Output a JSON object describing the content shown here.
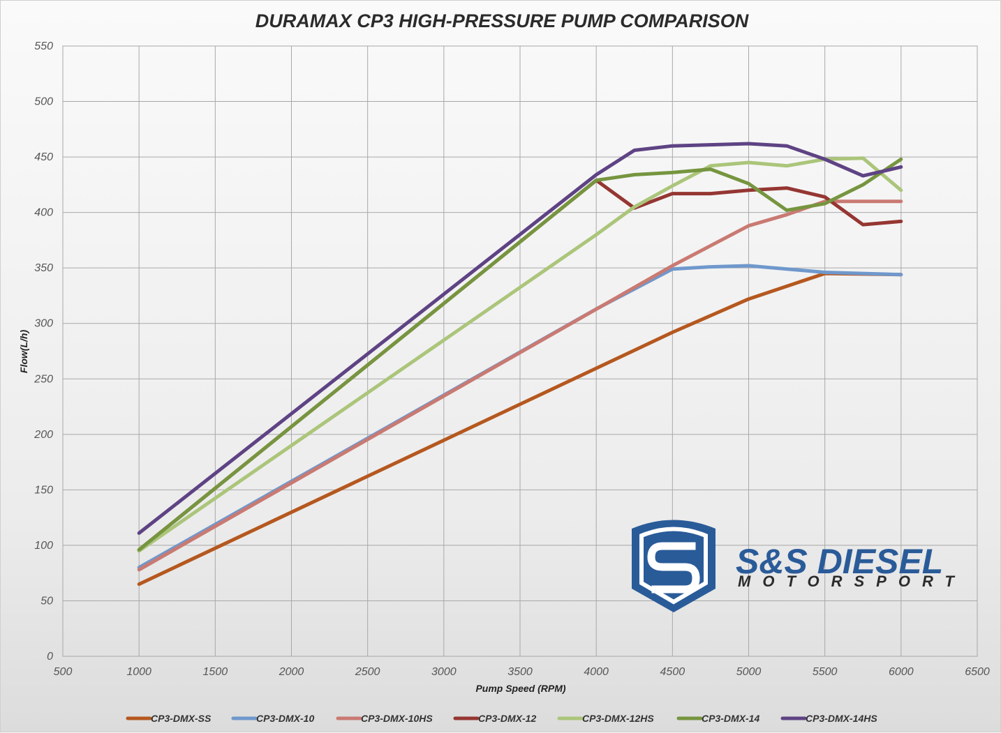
{
  "chart_data": {
    "type": "line",
    "title": "DURAMAX CP3 HIGH-PRESSURE PUMP COMPARISON",
    "xlabel": "Pump Speed (RPM)",
    "ylabel": "Flow(L/h)",
    "xlim": [
      500,
      6500
    ],
    "ylim": [
      0,
      550
    ],
    "xticks": [
      500,
      1000,
      1500,
      2000,
      2500,
      3000,
      3500,
      4000,
      4500,
      5000,
      5500,
      6000,
      6500
    ],
    "yticks": [
      0,
      50,
      100,
      150,
      200,
      250,
      300,
      350,
      400,
      450,
      500,
      550
    ],
    "grid": true,
    "legend_position": "bottom",
    "series": [
      {
        "name": "CP3-DMX-SS",
        "color": "#b5581f",
        "x": [
          1000,
          4500,
          5000,
          5500,
          6000
        ],
        "y": [
          65,
          292,
          322,
          345,
          344
        ]
      },
      {
        "name": "CP3-DMX-10",
        "color": "#6f98cc",
        "x": [
          1000,
          4000,
          4500,
          4750,
          5000,
          5250,
          5500,
          5750,
          6000
        ],
        "y": [
          80,
          313,
          349,
          351,
          352,
          349,
          346,
          345,
          344
        ]
      },
      {
        "name": "CP3-DMX-10HS",
        "color": "#c97a72",
        "x": [
          1000,
          4500,
          5000,
          5250,
          5500,
          5750,
          6000
        ],
        "y": [
          78,
          352,
          388,
          398,
          410,
          410,
          410
        ]
      },
      {
        "name": "CP3-DMX-12",
        "color": "#953632",
        "x": [
          1000,
          4000,
          4250,
          4500,
          4750,
          5000,
          5250,
          5500,
          5750,
          6000
        ],
        "y": [
          96,
          429,
          404,
          417,
          417,
          420,
          422,
          414,
          389,
          392
        ]
      },
      {
        "name": "CP3-DMX-12HS",
        "color": "#abc57a",
        "x": [
          1000,
          4000,
          4250,
          4500,
          4750,
          5000,
          5250,
          5500,
          5750,
          6000
        ],
        "y": [
          95,
          380,
          405,
          424,
          442,
          445,
          442,
          448,
          449,
          420
        ]
      },
      {
        "name": "CP3-DMX-14",
        "color": "#76953f",
        "x": [
          1000,
          4000,
          4250,
          4500,
          4750,
          5000,
          5250,
          5500,
          5750,
          6000
        ],
        "y": [
          96,
          429,
          434,
          436,
          439,
          426,
          402,
          408,
          425,
          448
        ]
      },
      {
        "name": "CP3-DMX-14HS",
        "color": "#5e4384",
        "x": [
          1000,
          4000,
          4250,
          4500,
          4750,
          5000,
          5250,
          5500,
          5750,
          6000
        ],
        "y": [
          111,
          434,
          456,
          460,
          461,
          462,
          460,
          448,
          433,
          441
        ]
      }
    ]
  },
  "logo": {
    "main_text": "S&S DIESEL",
    "sub_text": "MOTORSPORT",
    "color": "#2a5b99"
  }
}
